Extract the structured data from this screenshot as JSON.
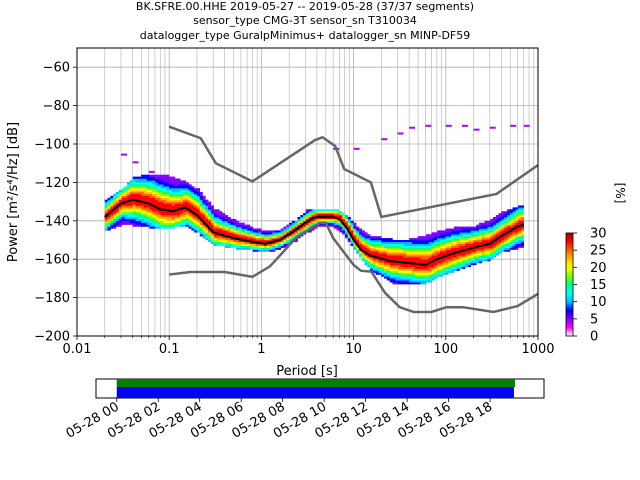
{
  "title": {
    "line1": "BK.SFRE.00.HHE   2019-05-27 -- 2019-05-28  (37/37 segments)",
    "line2": "sensor_type CMG-3T sensor_sn T310034",
    "line3": "datalogger_type GuralpMinimus+ datalogger_sn MINP-DF59"
  },
  "colors": {
    "noise_model": "#666666",
    "mean_line": "#000000",
    "coverage_good": "#008000",
    "coverage_data": "#0000ff"
  },
  "chart_data": [
    {
      "type": "heatmap",
      "title": "",
      "xlabel": "Period [s]",
      "ylabel": "Power [m²/s⁴/Hz] [dB]",
      "xscale": "log",
      "xlim": [
        0.01,
        1000
      ],
      "ylim": [
        -200,
        -50
      ],
      "x_ticks": [
        0.01,
        0.1,
        1,
        10,
        100,
        1000
      ],
      "x_tick_labels": [
        "0.01",
        "0.1",
        "1",
        "10",
        "100",
        "1000"
      ],
      "y_ticks": [
        -60,
        -80,
        -100,
        -120,
        -140,
        -160,
        -180,
        -200
      ],
      "y_tick_labels": [
        "−60",
        "−80",
        "−100",
        "−120",
        "−140",
        "−160",
        "−180",
        "−200"
      ],
      "grid": true,
      "colorbar": {
        "label": "[%]",
        "ticks": [
          0,
          5,
          10,
          15,
          20,
          25,
          30
        ],
        "tick_labels": [
          "0",
          "5",
          "10",
          "15",
          "20",
          "25",
          "30"
        ],
        "range": [
          0,
          30
        ],
        "colormap": [
          "#ffffff",
          "#ff00ff",
          "#7f00ff",
          "#0000ff",
          "#00bfff",
          "#00ffff",
          "#00ff80",
          "#80ff00",
          "#ffff00",
          "#ffbf00",
          "#ff6000",
          "#ff0000",
          "#a00000"
        ]
      },
      "series": [
        {
          "name": "",
          "role": "high noise model",
          "points": [
            [
              0.1,
              -91
            ],
            [
              0.22,
              -97
            ],
            [
              0.32,
              -110
            ],
            [
              0.8,
              -119.5
            ],
            [
              3.8,
              -98
            ],
            [
              4.6,
              -96.5
            ],
            [
              6.3,
              -101
            ],
            [
              7.9,
              -113
            ],
            [
              15.4,
              -120
            ],
            [
              20,
              -138
            ],
            [
              354.8,
              -126
            ],
            [
              1000,
              -111
            ]
          ]
        },
        {
          "name": "",
          "role": "low noise model",
          "points": [
            [
              0.1,
              -168
            ],
            [
              0.17,
              -166.7
            ],
            [
              0.4,
              -166.7
            ],
            [
              0.8,
              -169.2
            ],
            [
              1.24,
              -163.7
            ],
            [
              2.4,
              -148.6
            ],
            [
              4.3,
              -141.1
            ],
            [
              5,
              -141.1
            ],
            [
              6,
              -149
            ],
            [
              10,
              -163
            ],
            [
              12,
              -166
            ],
            [
              15.6,
              -166.5
            ],
            [
              21.9,
              -177.5
            ],
            [
              31.6,
              -185
            ],
            [
              45,
              -187.5
            ],
            [
              70,
              -187.5
            ],
            [
              101,
              -185
            ],
            [
              154,
              -185
            ],
            [
              328,
              -187.5
            ],
            [
              600,
              -184.4
            ],
            [
              1000,
              -178
            ]
          ]
        },
        {
          "name": "",
          "role": "mean PSD",
          "points": [
            [
              0.02,
              -138
            ],
            [
              0.03,
              -131
            ],
            [
              0.04,
              -129
            ],
            [
              0.06,
              -131
            ],
            [
              0.08,
              -134
            ],
            [
              0.11,
              -135
            ],
            [
              0.15,
              -133
            ],
            [
              0.2,
              -137
            ],
            [
              0.3,
              -146
            ],
            [
              0.5,
              -149
            ],
            [
              0.8,
              -151
            ],
            [
              1.1,
              -152
            ],
            [
              1.6,
              -150
            ],
            [
              2.3,
              -145
            ],
            [
              3,
              -141
            ],
            [
              3.5,
              -139
            ],
            [
              4,
              -138
            ],
            [
              5,
              -138
            ],
            [
              6,
              -138
            ],
            [
              7,
              -139
            ],
            [
              8.5,
              -144
            ],
            [
              10,
              -150
            ],
            [
              12,
              -155
            ],
            [
              15,
              -158
            ],
            [
              25,
              -161
            ],
            [
              40,
              -162
            ],
            [
              60,
              -163
            ],
            [
              80,
              -160
            ],
            [
              120,
              -157
            ],
            [
              200,
              -154
            ],
            [
              300,
              -152
            ],
            [
              400,
              -148
            ],
            [
              600,
              -143
            ],
            [
              700,
              -142
            ]
          ]
        }
      ],
      "density_band": [
        [
          0.02,
          -145,
          -129
        ],
        [
          0.03,
          -142,
          -124
        ],
        [
          0.04,
          -142,
          -118
        ],
        [
          0.06,
          -143,
          -116
        ],
        [
          0.08,
          -144,
          -116
        ],
        [
          0.11,
          -143,
          -118
        ],
        [
          0.15,
          -142,
          -120
        ],
        [
          0.2,
          -146,
          -124
        ],
        [
          0.3,
          -152,
          -134
        ],
        [
          0.5,
          -154,
          -140
        ],
        [
          0.8,
          -155,
          -144
        ],
        [
          1.1,
          -156,
          -146
        ],
        [
          1.6,
          -154,
          -145
        ],
        [
          2.3,
          -150,
          -140
        ],
        [
          3,
          -146,
          -135
        ],
        [
          4,
          -143,
          -134
        ],
        [
          5,
          -143,
          -134
        ],
        [
          6,
          -143,
          -134
        ],
        [
          7,
          -145,
          -135
        ],
        [
          8.5,
          -150,
          -138
        ],
        [
          10,
          -155,
          -142
        ],
        [
          12,
          -160,
          -145
        ],
        [
          15,
          -165,
          -148
        ],
        [
          25,
          -172,
          -150
        ],
        [
          40,
          -173,
          -150
        ],
        [
          60,
          -172,
          -148
        ],
        [
          80,
          -169,
          -146
        ],
        [
          120,
          -166,
          -144
        ],
        [
          200,
          -162,
          -143
        ],
        [
          300,
          -160,
          -140
        ],
        [
          400,
          -156,
          -136
        ],
        [
          600,
          -154,
          -133
        ],
        [
          700,
          -153,
          -132
        ]
      ],
      "upper_outliers": [
        [
          0.03,
          -106
        ],
        [
          0.04,
          -110
        ],
        [
          0.06,
          -115
        ],
        [
          0.1,
          -118
        ],
        [
          6,
          -103
        ],
        [
          10,
          -103
        ],
        [
          20,
          -98
        ],
        [
          30,
          -95
        ],
        [
          40,
          -92
        ],
        [
          60,
          -91
        ],
        [
          100,
          -91
        ],
        [
          150,
          -91
        ],
        [
          200,
          -93
        ],
        [
          300,
          -92
        ],
        [
          500,
          -91
        ],
        [
          700,
          -91
        ]
      ]
    },
    {
      "type": "bar",
      "title": "",
      "role": "data coverage timeline",
      "x_tick_labels": [
        "05-28 00",
        "05-28 02",
        "05-28 04",
        "05-28 06",
        "05-28 08",
        "05-28 10",
        "05-28 12",
        "05-28 14",
        "05-28 16",
        "05-28 18"
      ],
      "x_ticks_hours": [
        0,
        2,
        4,
        6,
        8,
        10,
        12,
        14,
        16,
        18
      ],
      "xlim_hours": [
        -1,
        20.6
      ],
      "coverage_hours": [
        0,
        19.2
      ]
    }
  ]
}
